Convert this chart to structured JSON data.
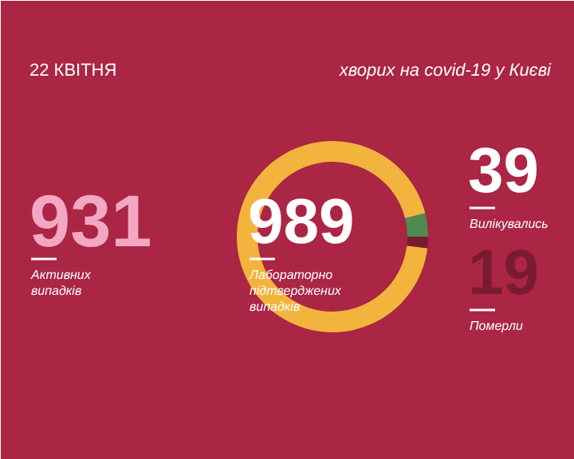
{
  "chart_data": {
    "type": "donut",
    "title": "22 КВІТНЯ",
    "subtitle": "хворих на covid-19 у Києві",
    "categories": [
      "Активних випадків",
      "Вилікувались",
      "Померли"
    ],
    "values": [
      931,
      39,
      19
    ],
    "colors": [
      "#f2b43c",
      "#4f8a50",
      "#7a1a30"
    ],
    "data_labels": true,
    "annotations": [
      "989",
      "Лабораторно підтверджених випадків"
    ]
  }
}
